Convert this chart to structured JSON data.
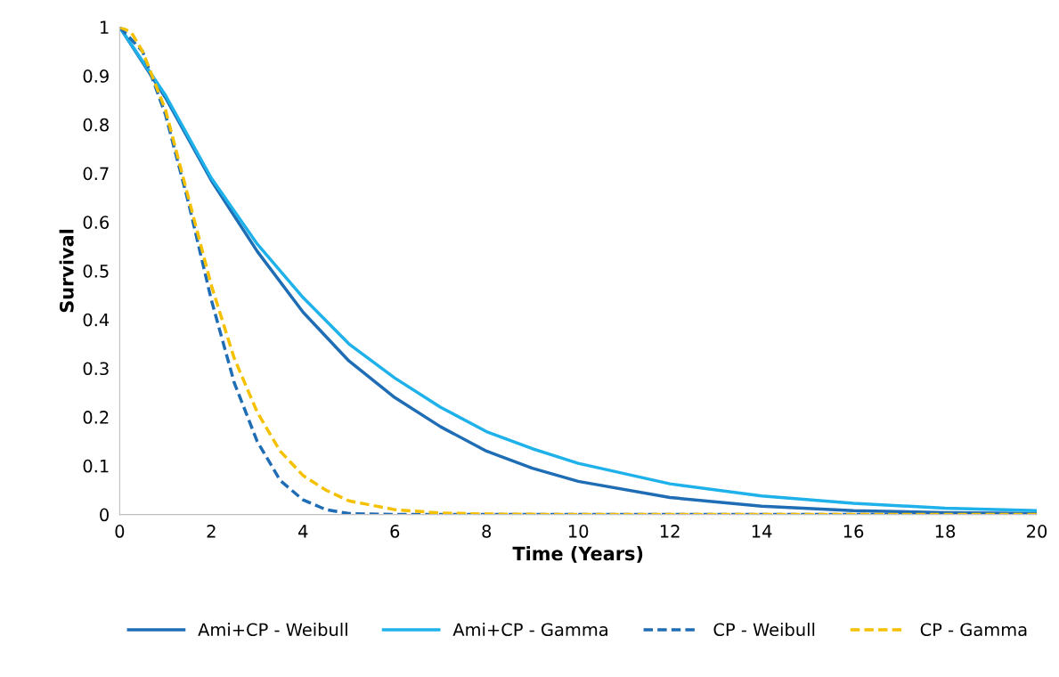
{
  "chart_data": {
    "type": "line",
    "xlabel": "Time (Years)",
    "ylabel": "Survival",
    "xlim": [
      0,
      20
    ],
    "ylim": [
      0,
      1
    ],
    "xticks": [
      0,
      2,
      4,
      6,
      8,
      10,
      12,
      14,
      16,
      18,
      20
    ],
    "yticks": [
      0,
      {
        "value": 0.1,
        "label": "0.1"
      },
      {
        "value": 0.2,
        "label": "0.2"
      },
      {
        "value": 0.3,
        "label": "0.3"
      },
      {
        "value": 0.4,
        "label": "0.4"
      },
      {
        "value": 0.5,
        "label": "0.5"
      },
      {
        "value": 0.6,
        "label": "0.6"
      },
      {
        "value": 0.7,
        "label": "0.7"
      },
      {
        "value": 0.8,
        "label": "0.8"
      },
      {
        "value": 0.9,
        "label": "0.9"
      },
      1
    ],
    "grid": false,
    "legend": "bottom",
    "marker": "none",
    "series": [
      {
        "name": "Ami+CP - Weibull",
        "color": "#1f6db5",
        "line_style": "solid",
        "x": [
          0,
          1,
          2,
          3,
          4,
          5,
          6,
          7,
          8,
          9,
          10,
          12,
          14,
          16,
          18,
          20
        ],
        "values": [
          1,
          0.855,
          0.685,
          0.54,
          0.415,
          0.315,
          0.24,
          0.18,
          0.13,
          0.095,
          0.068,
          0.035,
          0.017,
          0.008,
          0.004,
          0.002
        ]
      },
      {
        "name": "Ami+CP - Gamma",
        "color": "#1fb1ea",
        "line_style": "solid",
        "x": [
          0,
          1,
          2,
          3,
          4,
          5,
          6,
          7,
          8,
          9,
          10,
          12,
          14,
          16,
          18,
          20
        ],
        "values": [
          1,
          0.86,
          0.69,
          0.555,
          0.445,
          0.35,
          0.28,
          0.22,
          0.17,
          0.135,
          0.105,
          0.063,
          0.038,
          0.023,
          0.013,
          0.008
        ]
      },
      {
        "name": "CP - Weibull",
        "color": "#1f6db5",
        "line_style": "dashed",
        "x": [
          0,
          0.5,
          1,
          1.5,
          2,
          2.5,
          3,
          3.5,
          4,
          4.5,
          5,
          6,
          8,
          10,
          12,
          14,
          16,
          18,
          20
        ],
        "values": [
          1,
          0.95,
          0.82,
          0.64,
          0.44,
          0.27,
          0.15,
          0.07,
          0.03,
          0.01,
          0.002,
          0,
          0,
          0,
          0,
          0,
          0,
          0,
          0
        ]
      },
      {
        "name": "CP - Gamma",
        "color": "#f5c000",
        "line_style": "dashed",
        "x": [
          0,
          0.25,
          0.5,
          1,
          1.5,
          2,
          2.5,
          3,
          3.5,
          4,
          4.5,
          5,
          6,
          7,
          8,
          10,
          12,
          14,
          16,
          18,
          20
        ],
        "values": [
          1,
          0.99,
          0.95,
          0.83,
          0.65,
          0.47,
          0.32,
          0.21,
          0.13,
          0.08,
          0.05,
          0.028,
          0.01,
          0.003,
          0.001,
          0,
          0,
          0,
          0,
          0,
          0
        ]
      }
    ]
  }
}
